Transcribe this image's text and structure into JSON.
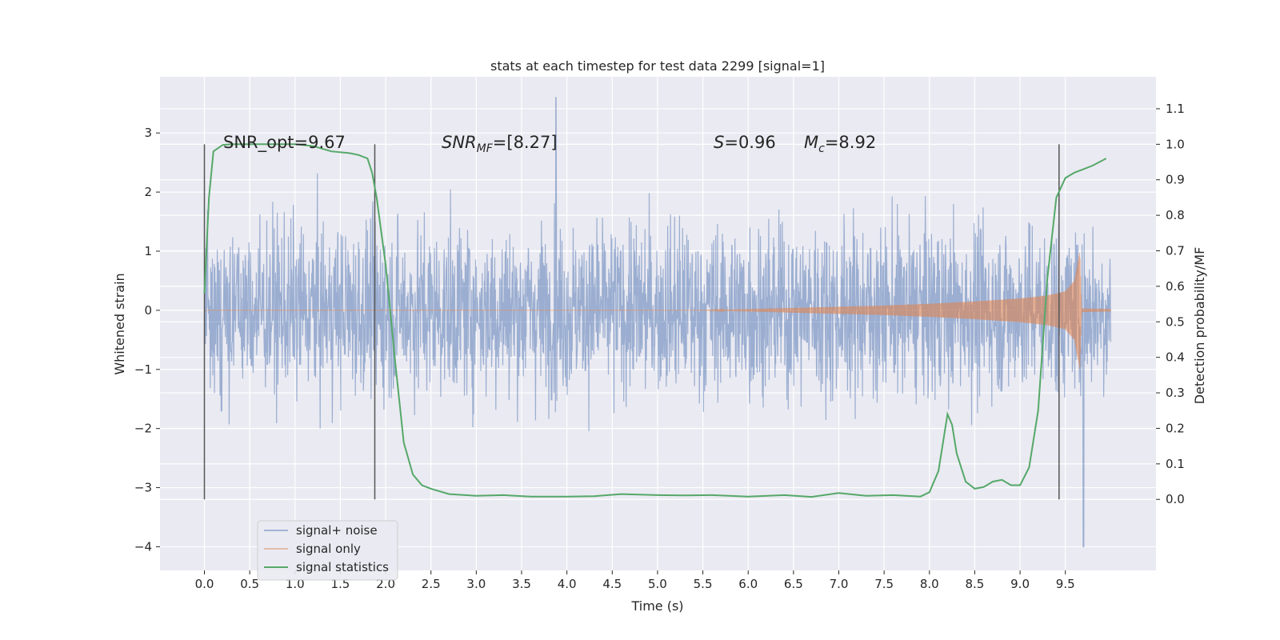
{
  "chart_data": {
    "type": "line",
    "title": "stats at each timestep for test data 2299 [signal=1]",
    "xlabel": "Time (s)",
    "ylabel": "Whitened strain",
    "y2label": "Detection probability/MF",
    "xlim": [
      -0.49,
      10.5
    ],
    "ylim": [
      -4.4,
      3.95
    ],
    "y2lim": [
      -0.2,
      1.19
    ],
    "x_ticks": [
      "0.0",
      "0.5",
      "1.0",
      "1.5",
      "2.0",
      "2.5",
      "3.0",
      "3.5",
      "4.0",
      "4.5",
      "5.0",
      "5.5",
      "6.0",
      "6.5",
      "7.0",
      "7.5",
      "8.0",
      "8.5",
      "9.0",
      "9.5"
    ],
    "y_ticks": [
      "3",
      "2",
      "1",
      "0",
      "−1",
      "−2",
      "−3",
      "−4"
    ],
    "y2_ticks": [
      "1.1",
      "1.0",
      "0.9",
      "0.8",
      "0.7",
      "0.6",
      "0.5",
      "0.4",
      "0.3",
      "0.2",
      "0.1",
      "0.0"
    ],
    "grid": true,
    "legend_position": "lower-left",
    "annotations": {
      "snr_opt": "SNR_opt=9.67",
      "snr_mf": "SNR",
      "snr_mf_sub": "MF",
      "snr_mf_rest": "=[8.27]",
      "s_label": "S",
      "s_rest": "=0.96",
      "mc_label": "M",
      "mc_sub": "c",
      "mc_rest": "=8.92"
    },
    "vertical_markers_x": [
      0.0,
      1.88,
      9.43
    ],
    "series": [
      {
        "name": "signal+ noise",
        "color": "#4c72b0",
        "description_values": {
          "t_start": 0.0,
          "t_end": 10.0,
          "typical_amplitude": 1.0,
          "max": 3.6,
          "min": -4.0,
          "max_at": 3.88,
          "min_at": 9.7
        }
      },
      {
        "name": "signal only",
        "color": "#dd8452",
        "envelope": {
          "t": [
            0.0,
            5.5,
            6.0,
            6.5,
            7.0,
            7.5,
            8.0,
            8.5,
            9.0,
            9.3,
            9.5,
            9.6,
            9.66,
            9.68,
            10.0
          ],
          "amp": [
            0.0,
            0.0,
            0.02,
            0.04,
            0.06,
            0.08,
            0.11,
            0.15,
            0.2,
            0.25,
            0.32,
            0.5,
            1.0,
            0.03,
            0.02
          ]
        }
      },
      {
        "name": "signal statistics",
        "color": "#55a868",
        "x": [
          0.0,
          0.05,
          0.1,
          0.2,
          0.3,
          0.5,
          0.8,
          1.0,
          1.2,
          1.4,
          1.6,
          1.7,
          1.8,
          1.85,
          1.9,
          2.0,
          2.1,
          2.2,
          2.3,
          2.4,
          2.5,
          2.7,
          3.0,
          3.3,
          3.6,
          4.0,
          4.3,
          4.6,
          5.0,
          5.3,
          5.6,
          6.0,
          6.4,
          6.7,
          7.0,
          7.3,
          7.6,
          7.9,
          8.0,
          8.1,
          8.2,
          8.25,
          8.3,
          8.4,
          8.5,
          8.6,
          8.7,
          8.8,
          8.9,
          9.0,
          9.1,
          9.2,
          9.3,
          9.4,
          9.5,
          9.6,
          9.7,
          9.8,
          9.95
        ],
        "y": [
          0.58,
          0.85,
          0.98,
          0.998,
          1.0,
          1.0,
          1.0,
          1.0,
          0.995,
          0.98,
          0.975,
          0.97,
          0.96,
          0.92,
          0.85,
          0.66,
          0.4,
          0.16,
          0.07,
          0.04,
          0.03,
          0.015,
          0.01,
          0.012,
          0.008,
          0.008,
          0.009,
          0.015,
          0.012,
          0.011,
          0.012,
          0.008,
          0.012,
          0.007,
          0.018,
          0.01,
          0.012,
          0.008,
          0.02,
          0.08,
          0.24,
          0.21,
          0.13,
          0.05,
          0.03,
          0.035,
          0.05,
          0.055,
          0.04,
          0.04,
          0.09,
          0.25,
          0.62,
          0.85,
          0.905,
          0.92,
          0.93,
          0.94,
          0.96
        ]
      }
    ]
  }
}
